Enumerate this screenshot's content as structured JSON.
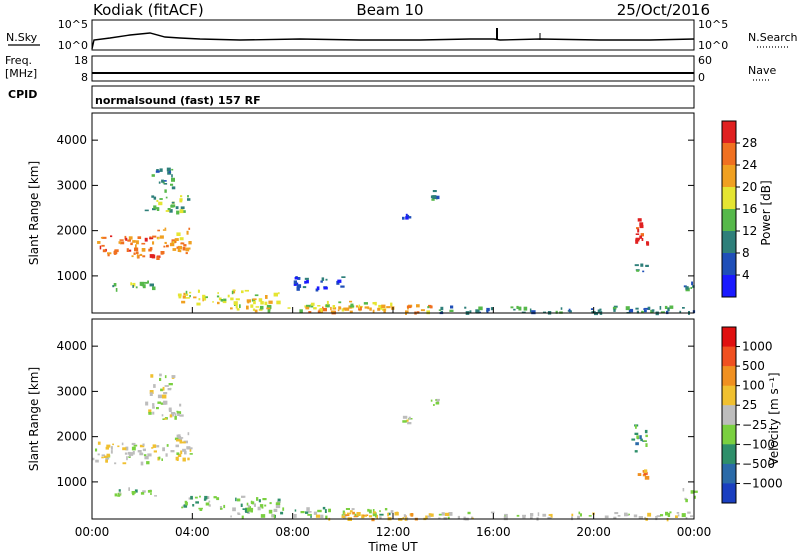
{
  "header": {
    "station": "Kodiak (fitACF)",
    "beam": "Beam 10",
    "date": "25/Oct/2016"
  },
  "noise_panel": {
    "left_label": "N.Sky",
    "right_label": "N.Search",
    "left_ticks": [
      "10^5",
      "10^0"
    ],
    "right_ticks": [
      "10^5",
      "10^0"
    ]
  },
  "freq_panel": {
    "left_label_line1": "Freq.",
    "left_label_line2": "[MHz]",
    "right_label": "Nave",
    "left_ticks": [
      "18",
      "8"
    ],
    "right_ticks": [
      "60",
      "0"
    ]
  },
  "cpid_panel": {
    "label": "CPID",
    "text": "normalsound (fast) 157 RF"
  },
  "chart_data": [
    {
      "type": "heatmap",
      "quantity": "Power",
      "ylabel": "Slant Range [km]",
      "yticks": [
        1000,
        2000,
        3000,
        4000
      ],
      "ylim": [
        180,
        4600
      ],
      "xlim_hours": [
        0,
        24
      ],
      "colorbar_label": "Power [dB]",
      "colorbar_ticks": [
        "4",
        "8",
        "12",
        "16",
        "20",
        "24",
        "28"
      ],
      "colorbar_colors": [
        "#1a1aff",
        "#1f4fb8",
        "#2e7f7a",
        "#56b84a",
        "#e5e532",
        "#f0a020",
        "#f07020",
        "#e02020"
      ],
      "patches": [
        {
          "t0": 0.0,
          "t1": 2.6,
          "r0": 1430,
          "r1": 1900,
          "level": 6
        },
        {
          "t0": 2.6,
          "t1": 3.9,
          "r0": 1500,
          "r1": 2100,
          "level": 5
        },
        {
          "t0": 2.1,
          "t1": 3.8,
          "r0": 2400,
          "r1": 2800,
          "level": 3
        },
        {
          "t0": 2.3,
          "t1": 3.2,
          "r0": 2900,
          "r1": 3400,
          "level": 2
        },
        {
          "t0": 0.7,
          "t1": 2.6,
          "r0": 700,
          "r1": 900,
          "level": 3
        },
        {
          "t0": 3.4,
          "t1": 7.5,
          "r0": 400,
          "r1": 700,
          "level": 4
        },
        {
          "t0": 5.5,
          "t1": 12.0,
          "r0": 250,
          "r1": 450,
          "level": 4
        },
        {
          "t0": 8.5,
          "t1": 13.5,
          "r0": 200,
          "r1": 380,
          "level": 5
        },
        {
          "t0": 13.0,
          "t1": 24.0,
          "r0": 200,
          "r1": 350,
          "level": 2
        },
        {
          "t0": 12.3,
          "t1": 12.7,
          "r0": 2300,
          "r1": 2500,
          "level": 1
        },
        {
          "t0": 13.5,
          "t1": 13.8,
          "r0": 2700,
          "r1": 2900,
          "level": 2
        },
        {
          "t0": 21.5,
          "t1": 22.1,
          "r0": 1700,
          "r1": 2300,
          "level": 7
        },
        {
          "t0": 21.6,
          "t1": 22.1,
          "r0": 1100,
          "r1": 1300,
          "level": 2
        },
        {
          "t0": 23.5,
          "t1": 24.0,
          "r0": 600,
          "r1": 900,
          "level": 2
        },
        {
          "t0": 8.0,
          "t1": 10.0,
          "r0": 700,
          "r1": 1000,
          "level": 1
        }
      ]
    },
    {
      "type": "heatmap",
      "quantity": "Velocity",
      "ylabel": "Slant Range [km]",
      "yticks": [
        1000,
        2000,
        3000,
        4000
      ],
      "ylim": [
        180,
        4600
      ],
      "xlim_hours": [
        0,
        24
      ],
      "colorbar_label": "Velocity [m s⁻¹]",
      "colorbar_ticks": [
        "1000",
        "500",
        "100",
        "25",
        "−25",
        "−100",
        "−500",
        "−1000"
      ],
      "colorbar_colors": [
        "#1a3fc0",
        "#2a6aa8",
        "#2e8f6a",
        "#7ad040",
        "#bdbdbd",
        "#f0c030",
        "#f09020",
        "#f05020",
        "#e01010"
      ],
      "xticks": [
        "00:00",
        "04:00",
        "08:00",
        "12:00",
        "16:00",
        "20:00",
        "00:00"
      ],
      "xlabel": "Time UT",
      "patches": [
        {
          "t0": 0.0,
          "t1": 2.6,
          "r0": 1430,
          "r1": 1900,
          "level": 4
        },
        {
          "t0": 2.6,
          "t1": 3.9,
          "r0": 1500,
          "r1": 2100,
          "level": 4
        },
        {
          "t0": 2.1,
          "t1": 3.8,
          "r0": 2400,
          "r1": 2800,
          "level": 4
        },
        {
          "t0": 2.3,
          "t1": 3.2,
          "r0": 2900,
          "r1": 3400,
          "level": 4
        },
        {
          "t0": 0.7,
          "t1": 2.6,
          "r0": 700,
          "r1": 900,
          "level": 3
        },
        {
          "t0": 3.4,
          "t1": 7.5,
          "r0": 400,
          "r1": 700,
          "level": 3
        },
        {
          "t0": 5.5,
          "t1": 12.0,
          "r0": 250,
          "r1": 450,
          "level": 3
        },
        {
          "t0": 8.5,
          "t1": 13.5,
          "r0": 200,
          "r1": 380,
          "level": 5
        },
        {
          "t0": 13.0,
          "t1": 24.0,
          "r0": 200,
          "r1": 350,
          "level": 4
        },
        {
          "t0": 12.3,
          "t1": 12.7,
          "r0": 2300,
          "r1": 2500,
          "level": 4
        },
        {
          "t0": 13.5,
          "t1": 13.8,
          "r0": 2700,
          "r1": 2900,
          "level": 3
        },
        {
          "t0": 21.5,
          "t1": 22.1,
          "r0": 1700,
          "r1": 2300,
          "level": 2
        },
        {
          "t0": 21.6,
          "t1": 22.1,
          "r0": 1100,
          "r1": 1300,
          "level": 6
        },
        {
          "t0": 23.5,
          "t1": 24.0,
          "r0": 600,
          "r1": 900,
          "level": 3
        }
      ]
    }
  ]
}
